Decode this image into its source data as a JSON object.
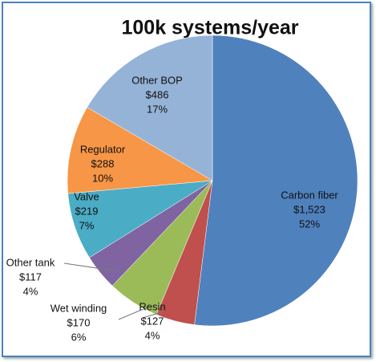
{
  "chart_data": {
    "type": "pie",
    "title": "100k systems/year",
    "categories": [
      "Carbon fiber",
      "Resin",
      "Wet winding",
      "Other tank",
      "Valve",
      "Regulator",
      "Other BOP"
    ],
    "values": [
      1523,
      127,
      170,
      117,
      219,
      288,
      486
    ],
    "value_labels": [
      "$1,523",
      "$127",
      "$170",
      "$117",
      "$219",
      "$288",
      "$486"
    ],
    "percent_labels": [
      "52%",
      "4%",
      "6%",
      "4%",
      "7%",
      "10%",
      "17%"
    ],
    "colors": [
      "#4f81bd",
      "#c0504d",
      "#9bbb59",
      "#8064a2",
      "#4bacc6",
      "#f79646",
      "#95b3d7"
    ]
  }
}
